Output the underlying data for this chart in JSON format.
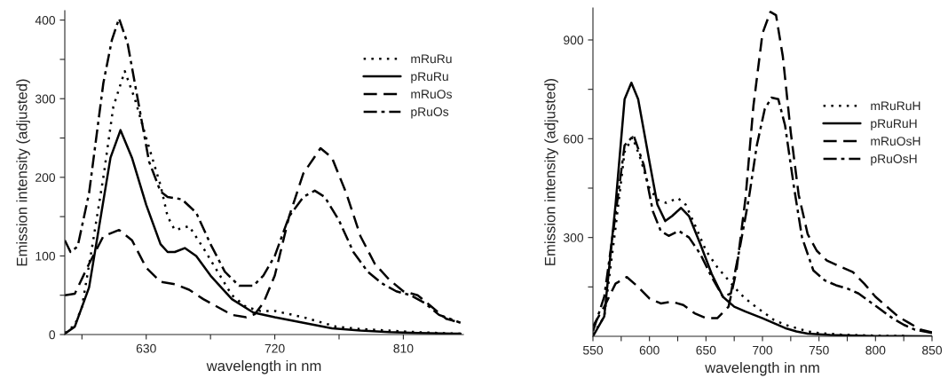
{
  "chart_data": [
    {
      "type": "line",
      "xlabel": "wavelength in nm",
      "ylabel": "Emission intensity (adjusted)",
      "xlim": [
        573,
        852
      ],
      "ylim": [
        0,
        412
      ],
      "xticks": [
        {
          "value": 585,
          "label": null
        },
        630,
        {
          "value": 675,
          "label": null
        },
        720,
        {
          "value": 765,
          "label": null
        },
        810
      ],
      "yticks": [
        0,
        {
          "value": 50,
          "label": null
        },
        100,
        {
          "value": 150,
          "label": null
        },
        200,
        {
          "value": 250,
          "label": null
        },
        300,
        {
          "value": 350,
          "label": null
        },
        400
      ],
      "grid": false,
      "legend": "top right",
      "marker": "none",
      "series": [
        {
          "name": "mRuRu",
          "color": "#000000",
          "line_style": "dotted",
          "x": [
            573,
            580,
            585,
            592,
            600,
            607,
            615,
            622,
            630,
            640,
            645,
            650,
            655,
            660,
            670,
            680,
            690,
            700,
            710,
            720,
            740,
            763,
            780,
            800,
            820,
            850
          ],
          "values": [
            2,
            12,
            35,
            110,
            200,
            290,
            335,
            300,
            250,
            190,
            150,
            133,
            135,
            138,
            110,
            80,
            50,
            35,
            30,
            30,
            22,
            10,
            7,
            5,
            3,
            1
          ]
        },
        {
          "name": "pRuRu",
          "color": "#000000",
          "line_style": "solid",
          "x": [
            573,
            580,
            590,
            600,
            605,
            612,
            620,
            630,
            640,
            645,
            650,
            657,
            665,
            675,
            690,
            705,
            720,
            740,
            760,
            780,
            800,
            820,
            850
          ],
          "values": [
            1,
            10,
            60,
            170,
            225,
            260,
            225,
            165,
            115,
            105,
            105,
            110,
            100,
            75,
            45,
            28,
            22,
            15,
            8,
            5,
            3,
            2,
            1
          ]
        },
        {
          "name": "mRuOs",
          "color": "#000000",
          "line_style": "dashed",
          "x": [
            573,
            580,
            590,
            600,
            611,
            620,
            630,
            640,
            650,
            660,
            670,
            680,
            690,
            700,
            706,
            712,
            720,
            730,
            740,
            752,
            760,
            770,
            780,
            790,
            800,
            810,
            820,
            830,
            840,
            850
          ],
          "values": [
            50,
            52,
            90,
            125,
            133,
            120,
            85,
            67,
            64,
            57,
            45,
            35,
            25,
            22,
            26,
            40,
            75,
            150,
            205,
            237,
            225,
            180,
            125,
            90,
            70,
            55,
            50,
            35,
            20,
            15
          ]
        },
        {
          "name": "pRuOs",
          "color": "#000000",
          "line_style": "dashdot",
          "x": [
            573,
            577,
            582,
            590,
            600,
            606,
            611,
            617,
            625,
            632,
            640,
            645,
            655,
            665,
            675,
            685,
            695,
            705,
            712,
            720,
            730,
            740,
            748,
            755,
            765,
            775,
            785,
            795,
            805,
            815,
            825,
            835,
            850
          ],
          "values": [
            120,
            105,
            112,
            180,
            320,
            375,
            402,
            370,
            290,
            220,
            182,
            175,
            172,
            155,
            115,
            80,
            62,
            62,
            75,
            100,
            150,
            175,
            183,
            175,
            145,
            105,
            80,
            65,
            55,
            50,
            40,
            25,
            15
          ]
        }
      ]
    },
    {
      "type": "line",
      "xlabel": "wavelength in nm",
      "ylabel": "Emission intensity (adjusted)",
      "xlim": [
        550,
        850
      ],
      "ylim": [
        0,
        997
      ],
      "xticks": [
        550,
        {
          "value": 575,
          "label": null
        },
        600,
        {
          "value": 625,
          "label": null
        },
        650,
        {
          "value": 675,
          "label": null
        },
        700,
        {
          "value": 725,
          "label": null
        },
        750,
        {
          "value": 775,
          "label": null
        },
        800,
        {
          "value": 825,
          "label": null
        },
        850
      ],
      "yticks": [
        {
          "value": 150,
          "label": null
        },
        300,
        {
          "value": 450,
          "label": null
        },
        600,
        {
          "value": 750,
          "label": null
        },
        900
      ],
      "grid": false,
      "legend": "top right",
      "marker": "none",
      "series": [
        {
          "name": "mRuRuH",
          "color": "#000000",
          "line_style": "dotted",
          "x": [
            550,
            560,
            570,
            578,
            585,
            592,
            600,
            607,
            615,
            625,
            632,
            640,
            650,
            660,
            670,
            680,
            690,
            700,
            710,
            720,
            730,
            740,
            750,
            770,
            800,
            830
          ],
          "values": [
            5,
            60,
            330,
            560,
            605,
            540,
            450,
            415,
            405,
            420,
            400,
            340,
            260,
            210,
            170,
            130,
            100,
            75,
            50,
            35,
            25,
            15,
            10,
            5,
            2,
            1
          ]
        },
        {
          "name": "pRuRuH",
          "color": "#000000",
          "line_style": "solid",
          "x": [
            550,
            560,
            570,
            578,
            584,
            590,
            600,
            607,
            614,
            620,
            628,
            635,
            645,
            655,
            665,
            675,
            685,
            700,
            710,
            720,
            730,
            740,
            760,
            800,
            850
          ],
          "values": [
            0,
            60,
            400,
            720,
            770,
            720,
            530,
            400,
            350,
            365,
            390,
            365,
            280,
            190,
            120,
            90,
            75,
            55,
            40,
            25,
            15,
            8,
            4,
            1,
            0
          ]
        },
        {
          "name": "mRuOsH",
          "color": "#000000",
          "line_style": "dashed",
          "x": [
            550,
            560,
            570,
            580,
            590,
            600,
            610,
            620,
            630,
            640,
            650,
            660,
            670,
            677,
            685,
            692,
            700,
            707,
            712,
            718,
            725,
            732,
            740,
            748,
            757,
            770,
            780,
            790,
            800,
            810,
            820,
            830,
            840,
            850
          ],
          "values": [
            30,
            90,
            160,
            180,
            150,
            115,
            100,
            105,
            95,
            70,
            55,
            55,
            90,
            200,
            420,
            700,
            920,
            985,
            975,
            850,
            620,
            430,
            310,
            260,
            230,
            210,
            195,
            160,
            120,
            90,
            60,
            40,
            20,
            12
          ]
        },
        {
          "name": "pRuOsH",
          "color": "#000000",
          "line_style": "dashdot",
          "x": [
            550,
            560,
            570,
            578,
            586,
            595,
            603,
            610,
            617,
            626,
            635,
            645,
            655,
            665,
            672,
            680,
            688,
            695,
            702,
            708,
            714,
            720,
            728,
            735,
            745,
            755,
            765,
            775,
            785,
            795,
            805,
            815,
            825,
            835,
            850
          ],
          "values": [
            15,
            120,
            370,
            580,
            610,
            520,
            380,
            320,
            305,
            320,
            300,
            250,
            180,
            120,
            130,
            270,
            420,
            580,
            690,
            725,
            720,
            640,
            450,
            300,
            200,
            170,
            155,
            145,
            130,
            105,
            80,
            55,
            35,
            20,
            10
          ]
        }
      ]
    }
  ]
}
